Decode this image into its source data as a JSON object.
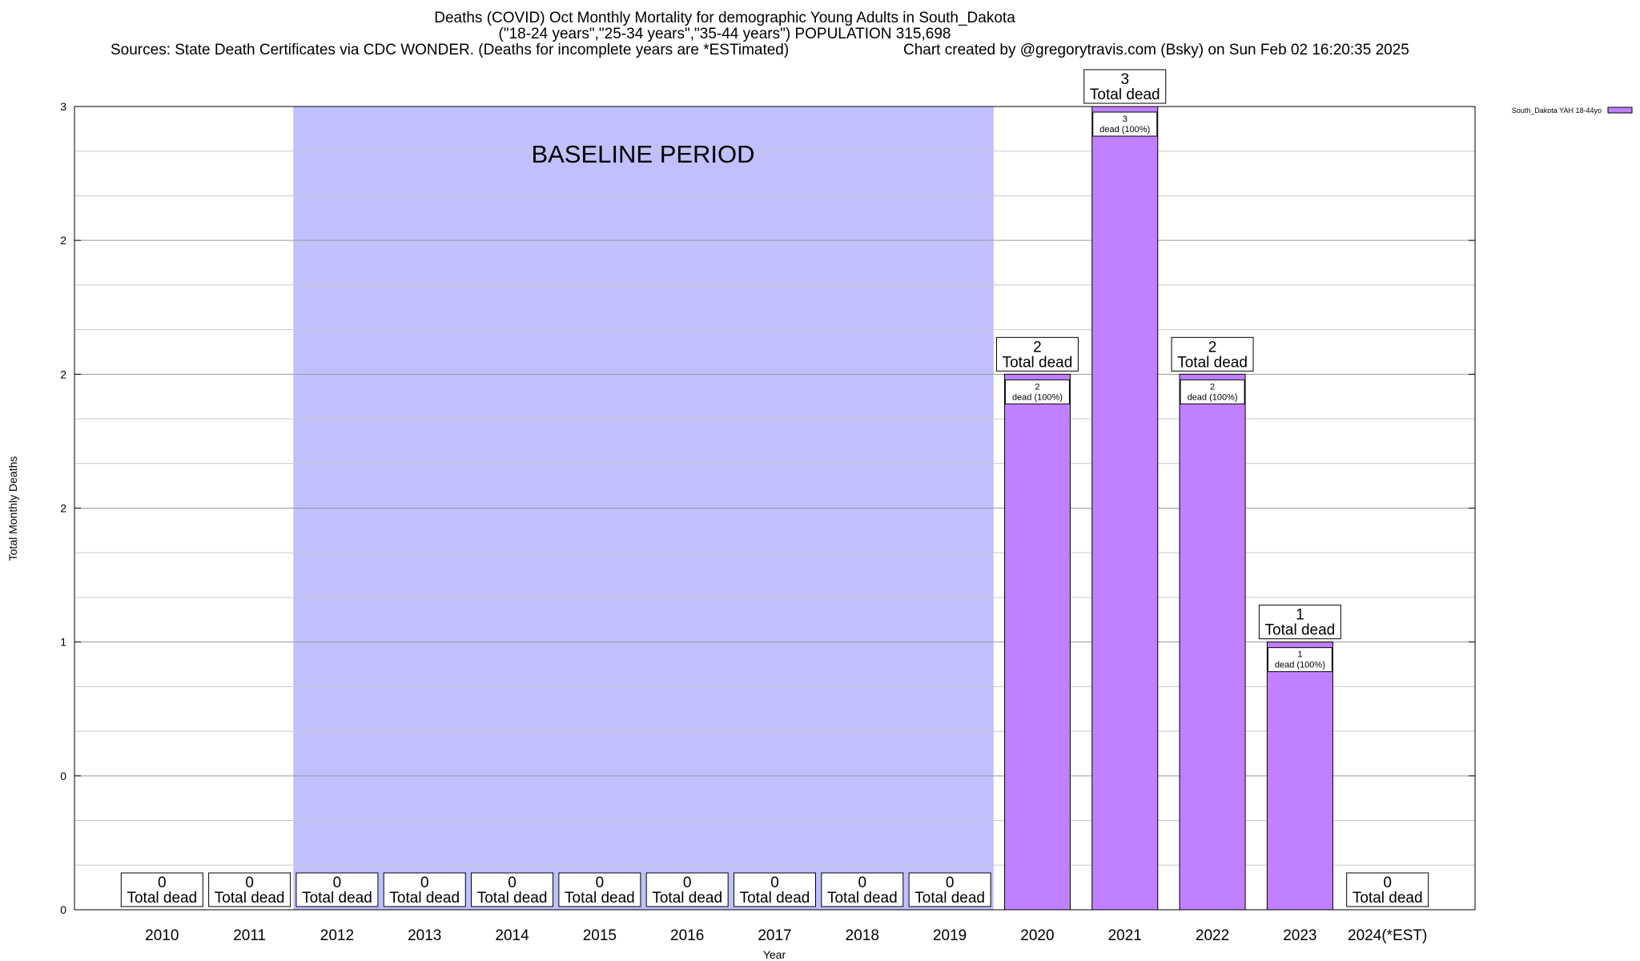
{
  "header": {
    "title": "Deaths (COVID) Oct Monthly Mortality for demographic Young Adults in South_Dakota",
    "subtitle": "(\"18-24 years\",\"25-34 years\",\"35-44 years\") POPULATION 315,698",
    "sources": "Sources: State Death Certificates via CDC WONDER. (Deaths for incomplete years are *ESTimated)",
    "credit": "Chart created by @gregorytravis.com (Bsky) on Sun Feb 02 16:20:35 2025"
  },
  "chart_data": {
    "type": "bar",
    "xlabel": "Year",
    "ylabel": "Total Monthly Deaths",
    "ylim": [
      0,
      3
    ],
    "ytick_labels": [
      "0",
      "0",
      "1",
      "2",
      "2",
      "2",
      "3"
    ],
    "categories": [
      "2010",
      "2011",
      "2012",
      "2013",
      "2014",
      "2015",
      "2016",
      "2017",
      "2018",
      "2019",
      "2020",
      "2021",
      "2022",
      "2023",
      "2024(*EST)"
    ],
    "series": [
      {
        "name": "South_Dakota YAH 18-44yo",
        "values": [
          0,
          0,
          0,
          0,
          0,
          0,
          0,
          0,
          0,
          0,
          2,
          3,
          2,
          1,
          0
        ]
      }
    ],
    "total_labels": [
      "0",
      "0",
      "0",
      "0",
      "0",
      "0",
      "0",
      "0",
      "0",
      "0",
      "2",
      "3",
      "2",
      "1",
      "0"
    ],
    "total_suffix": "Total dead",
    "inner_labels": [
      "",
      "",
      "",
      "",
      "",
      "",
      "",
      "",
      "",
      "",
      "2",
      "3",
      "2",
      "1",
      ""
    ],
    "inner_suffix": "dead (100%)",
    "baseline": {
      "label": "BASELINE PERIOD",
      "start": "2012",
      "end": "2019"
    },
    "grid": true,
    "legend_position": "top-right",
    "colors": {
      "bar": "#c080ff",
      "baseline": "#c0c0ff"
    }
  }
}
